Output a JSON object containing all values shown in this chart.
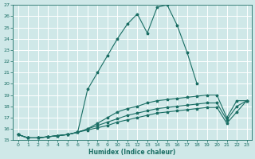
{
  "xlabel": "Humidex (Indice chaleur)",
  "bg_color": "#cfe8e8",
  "grid_color": "#ffffff",
  "line_color": "#1a6e64",
  "xlim": [
    -0.5,
    23.5
  ],
  "ylim": [
    15,
    27
  ],
  "xticks": [
    0,
    1,
    2,
    3,
    4,
    5,
    6,
    7,
    8,
    9,
    10,
    11,
    12,
    13,
    14,
    15,
    16,
    17,
    18,
    19,
    20,
    21,
    22,
    23
  ],
  "yticks": [
    15,
    16,
    17,
    18,
    19,
    20,
    21,
    22,
    23,
    24,
    25,
    26,
    27
  ],
  "lines": [
    {
      "x": [
        0,
        1,
        2,
        3,
        4,
        5,
        6,
        7,
        8,
        9,
        10,
        11,
        12,
        13,
        14,
        15,
        16,
        17,
        18,
        19,
        20,
        21,
        22,
        23
      ],
      "y": [
        15.5,
        15.2,
        15.2,
        15.3,
        15.4,
        15.5,
        15.7,
        19.5,
        21.0,
        22.5,
        24.0,
        25.3,
        26.2,
        24.5,
        26.8,
        27.0,
        25.2,
        22.8,
        20.0,
        null,
        null,
        null,
        null,
        null
      ]
    },
    {
      "x": [
        0,
        1,
        2,
        3,
        4,
        5,
        6,
        7,
        8,
        9,
        10,
        11,
        12,
        13,
        14,
        15,
        16,
        17,
        18,
        19,
        20,
        21,
        22,
        23
      ],
      "y": [
        15.5,
        15.2,
        15.2,
        15.3,
        15.4,
        15.5,
        15.7,
        16.0,
        16.5,
        17.0,
        17.5,
        17.8,
        18.0,
        18.3,
        18.5,
        18.6,
        18.7,
        18.8,
        18.9,
        19.0,
        19.0,
        17.0,
        18.5,
        18.5
      ]
    },
    {
      "x": [
        0,
        1,
        2,
        3,
        4,
        5,
        6,
        7,
        8,
        9,
        10,
        11,
        12,
        13,
        14,
        15,
        16,
        17,
        18,
        19,
        20,
        21,
        22,
        23
      ],
      "y": [
        15.5,
        15.2,
        15.2,
        15.3,
        15.4,
        15.5,
        15.7,
        16.0,
        16.3,
        16.6,
        16.9,
        17.2,
        17.4,
        17.6,
        17.8,
        17.9,
        18.0,
        18.1,
        18.2,
        18.3,
        18.3,
        16.8,
        18.0,
        18.5
      ]
    },
    {
      "x": [
        0,
        1,
        2,
        3,
        4,
        5,
        6,
        7,
        8,
        9,
        10,
        11,
        12,
        13,
        14,
        15,
        16,
        17,
        18,
        19,
        20,
        21,
        22,
        23
      ],
      "y": [
        15.5,
        15.2,
        15.2,
        15.3,
        15.4,
        15.5,
        15.7,
        15.9,
        16.1,
        16.3,
        16.6,
        16.8,
        17.0,
        17.2,
        17.4,
        17.5,
        17.6,
        17.7,
        17.8,
        17.9,
        17.9,
        16.5,
        17.5,
        18.5
      ]
    }
  ]
}
